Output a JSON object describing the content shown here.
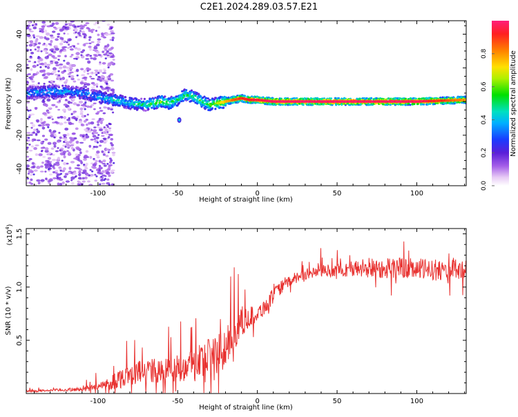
{
  "title": "C2E1.2024.289.03.57.E21",
  "chart_data": [
    {
      "type": "heatmap",
      "xlabel": "Height of straight line (km)",
      "ylabel": "Frequency (Hz)",
      "xlim": [
        -145,
        131
      ],
      "ylim": [
        -50,
        48
      ],
      "xticks": [
        -100,
        -50,
        0,
        50,
        100
      ],
      "yticks": [
        -40,
        -20,
        0,
        20,
        40
      ],
      "ridge": {
        "x": [
          -145,
          -130,
          -120,
          -110,
          -100,
          -90,
          -80,
          -70,
          -60,
          -55,
          -50,
          -45,
          -40,
          -35,
          -30,
          -25,
          -20,
          -15,
          -10,
          -5,
          0,
          10,
          30,
          60,
          100,
          131
        ],
        "freq": [
          5,
          6,
          6,
          5,
          3,
          1,
          -1,
          -2,
          0,
          -1,
          1,
          4,
          3,
          0,
          -2,
          -1,
          0,
          1,
          2,
          1,
          1,
          0,
          0,
          0,
          0,
          1
        ],
        "amplitude": [
          0.35,
          0.4,
          0.38,
          0.35,
          0.4,
          0.45,
          0.45,
          0.5,
          0.6,
          0.55,
          0.5,
          0.5,
          0.55,
          0.55,
          0.6,
          0.65,
          0.75,
          0.85,
          0.9,
          0.92,
          0.95,
          0.98,
          0.98,
          0.98,
          0.98,
          0.8
        ]
      }
    },
    {
      "type": "colorbar",
      "label": "Normalized spectral amplitude",
      "range": [
        0.0,
        1.0
      ],
      "ticks": [
        "0.0",
        "0.2",
        "0.4",
        "0.6",
        "0.8"
      ]
    },
    {
      "type": "line",
      "xlabel": "Height of straight line (km)",
      "ylabel": "SNR (10 * v/v)",
      "multiplier_label": "(x10",
      "multiplier_exp": "4",
      "multiplier_close": ")",
      "color": "#e8302e",
      "xlim": [
        -145,
        131
      ],
      "ylim": [
        0,
        1.55
      ],
      "xticks": [
        -100,
        -50,
        0,
        50,
        100
      ],
      "yticks": [
        {
          "v": 0.5,
          "label": "0.5"
        },
        {
          "v": 1.0,
          "label": "1.0"
        },
        {
          "v": 1.5,
          "label": "1.5"
        }
      ],
      "envelope": {
        "x": [
          -145,
          -130,
          -110,
          -100,
          -95,
          -90,
          -85,
          -80,
          -70,
          -60,
          -50,
          -40,
          -35,
          -30,
          -25,
          -20,
          -15,
          -10,
          -5,
          0,
          5,
          10,
          15,
          20,
          25,
          30,
          40,
          50,
          60,
          70,
          80,
          90,
          100,
          110,
          120,
          131
        ],
        "y": [
          0.02,
          0.03,
          0.04,
          0.06,
          0.08,
          0.12,
          0.15,
          0.18,
          0.22,
          0.2,
          0.24,
          0.28,
          0.3,
          0.32,
          0.35,
          0.42,
          0.55,
          0.68,
          0.72,
          0.75,
          0.82,
          0.92,
          1.0,
          1.05,
          1.1,
          1.12,
          1.15,
          1.16,
          1.17,
          1.18,
          1.18,
          1.18,
          1.17,
          1.16,
          1.16,
          1.16
        ],
        "noise": [
          0.01,
          0.01,
          0.02,
          0.04,
          0.06,
          0.08,
          0.1,
          0.1,
          0.12,
          0.12,
          0.14,
          0.17,
          0.2,
          0.22,
          0.22,
          0.2,
          0.16,
          0.14,
          0.1,
          0.08,
          0.08,
          0.07,
          0.06,
          0.05,
          0.05,
          0.05,
          0.06,
          0.06,
          0.08,
          0.1,
          0.1,
          0.1,
          0.1,
          0.1,
          0.1,
          0.1
        ]
      }
    }
  ]
}
